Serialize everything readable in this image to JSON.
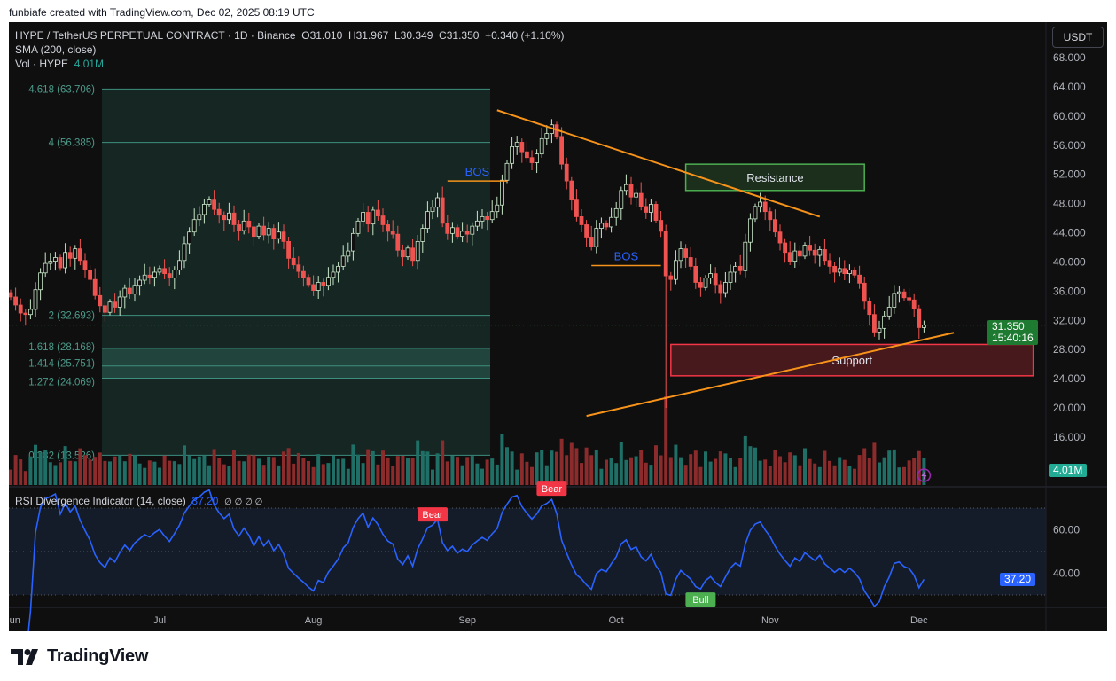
{
  "credit": "funbiafe created with TradingView.com, Dec 02, 2025 08:19 UTC",
  "legend": {
    "symbol": "HYPE / TetherUS PERPETUAL CONTRACT · 1D · Binance",
    "o_label": "O",
    "o": "31.010",
    "h_label": "H",
    "h": "31.967",
    "l_label": "L",
    "l": "30.349",
    "c_label": "C",
    "c": "31.350",
    "change": "+0.340 (+1.10%)",
    "sma": "SMA (200, close)",
    "vol_label": "Vol · HYPE",
    "vol": "4.01M"
  },
  "currency_button": "USDT",
  "price_tag": {
    "price": "31.350",
    "countdown": "15:40:16"
  },
  "volume_tag": "4.01M",
  "rsi": {
    "label": "RSI Divergence Indicator (14, close)",
    "value": "37.20",
    "extras": "∅ ∅ ∅ ∅",
    "tag": "37.20"
  },
  "logo": "TradingView",
  "colors": {
    "up": "#26a69a",
    "down": "#ef5350",
    "vol_up": "#1f6f66",
    "vol_down": "#8b2b2b",
    "rsi_line": "#2962ff",
    "trendline": "#f7931a",
    "bos": "#2962ff",
    "resistance": "#4caf50",
    "support": "#f23645",
    "fib": "#3d8f80"
  },
  "chart_data": {
    "type": "candlestick",
    "start_date": "2025-06-01",
    "interval": "1D",
    "closes": [
      35.2,
      34.1,
      33.0,
      32.8,
      33.5,
      36.2,
      38.5,
      39.8,
      40.1,
      40.6,
      39.2,
      41.3,
      40.5,
      41.8,
      40.2,
      38.9,
      37.6,
      35.4,
      34.0,
      33.1,
      34.5,
      33.8,
      35.2,
      36.4,
      35.6,
      36.8,
      37.5,
      38.2,
      37.9,
      38.6,
      39.1,
      38.4,
      37.8,
      38.9,
      40.2,
      42.5,
      44.1,
      45.8,
      46.5,
      47.9,
      48.6,
      47.2,
      46.4,
      45.8,
      46.7,
      45.1,
      44.3,
      45.6,
      44.8,
      43.5,
      44.9,
      43.7,
      44.6,
      43.2,
      44.1,
      42.8,
      40.5,
      39.6,
      38.7,
      37.9,
      36.9,
      36.1,
      37.2,
      36.8,
      37.9,
      38.6,
      39.4,
      40.8,
      41.5,
      43.9,
      45.6,
      46.8,
      45.2,
      47.1,
      46.3,
      45.1,
      44.2,
      43.8,
      41.6,
      40.7,
      41.9,
      40.2,
      42.8,
      44.6,
      46.9,
      47.5,
      48.8,
      45.3,
      43.9,
      44.7,
      43.5,
      44.2,
      43.8,
      44.9,
      45.6,
      46.2,
      45.8,
      46.9,
      47.8,
      51.2,
      53.5,
      55.8,
      56.4,
      55.1,
      54.3,
      53.6,
      54.8,
      56.9,
      57.6,
      58.8,
      57.2,
      53.4,
      51.1,
      48.6,
      46.2,
      45.1,
      43.4,
      42.1,
      44.6,
      45.3,
      44.8,
      46.1,
      47.3,
      49.8,
      50.6,
      48.9,
      49.4,
      47.6,
      46.8,
      47.9,
      45.7,
      44.2,
      38.1,
      37.6,
      40.2,
      41.8,
      40.6,
      39.4,
      37.2,
      36.5,
      37.8,
      38.4,
      36.9,
      35.8,
      37.2,
      38.6,
      39.4,
      38.8,
      42.7,
      45.9,
      47.6,
      48.2,
      46.9,
      45.8,
      44.1,
      42.6,
      41.3,
      40.1,
      41.5,
      40.8,
      42.3,
      41.6,
      40.9,
      41.7,
      40.2,
      39.4,
      38.6,
      39.1,
      38.4,
      38.9,
      38.2,
      37.1,
      34.6,
      32.8,
      30.4,
      30.9,
      32.6,
      33.8,
      35.7,
      35.9,
      35.1,
      34.8,
      33.6,
      31.01,
      31.35
    ],
    "last_candle": {
      "open": 31.01,
      "high": 31.967,
      "low": 30.349,
      "close": 31.35
    },
    "notable_wick_low": {
      "date": "2025-10-11",
      "low": 20.0
    },
    "price_axis": {
      "ticks": [
        "68.000",
        "64.000",
        "60.000",
        "56.000",
        "52.000",
        "48.000",
        "44.000",
        "40.000",
        "36.000",
        "32.000",
        "28.000",
        "24.000",
        "20.000",
        "16.000"
      ],
      "range": [
        12,
        70
      ]
    },
    "time_axis": [
      "Jun",
      "Jul",
      "Aug",
      "Sep",
      "Oct",
      "Nov",
      "Dec"
    ],
    "fib_levels": [
      {
        "label": "4.618 (63.706)",
        "price": 63.706
      },
      {
        "label": "4 (56.385)",
        "price": 56.385
      },
      {
        "label": "2 (32.693)",
        "price": 32.693
      },
      {
        "label": "1.618 (28.168)",
        "price": 28.168
      },
      {
        "label": "1.414 (25.751)",
        "price": 25.751
      },
      {
        "label": "1.272 (24.069)",
        "price": 24.069
      },
      {
        "label": "0.382 (13.526)",
        "price": 13.526
      }
    ],
    "zones": [
      {
        "label": "Resistance",
        "from": 49.8,
        "to": 53.4,
        "start": "2025-10-15",
        "end": "2025-11-20"
      },
      {
        "label": "Support",
        "from": 24.4,
        "to": 28.7,
        "start": "2025-10-12",
        "end": "2025-12-24"
      }
    ],
    "annotations": [
      {
        "label": "BOS",
        "price": 51.1,
        "start": "2025-08-28",
        "end": "2025-09-09"
      },
      {
        "label": "BOS",
        "price": 39.5,
        "start": "2025-09-26",
        "end": "2025-10-10"
      }
    ],
    "trendlines": [
      {
        "start": [
          "2025-09-07",
          60.8
        ],
        "end": [
          "2025-11-11",
          46.2
        ]
      },
      {
        "start": [
          "2025-09-25",
          18.9
        ],
        "end": [
          "2025-12-08",
          30.3
        ]
      }
    ],
    "rsi_axis": {
      "ticks": [
        "60.00",
        "40.00"
      ],
      "bands": [
        30,
        50,
        70
      ]
    },
    "rsi_signals": [
      {
        "label": "Bear",
        "date": "2025-08-25"
      },
      {
        "label": "Bear",
        "date": "2025-09-18"
      },
      {
        "label": "Bull",
        "date": "2025-10-18"
      }
    ]
  }
}
